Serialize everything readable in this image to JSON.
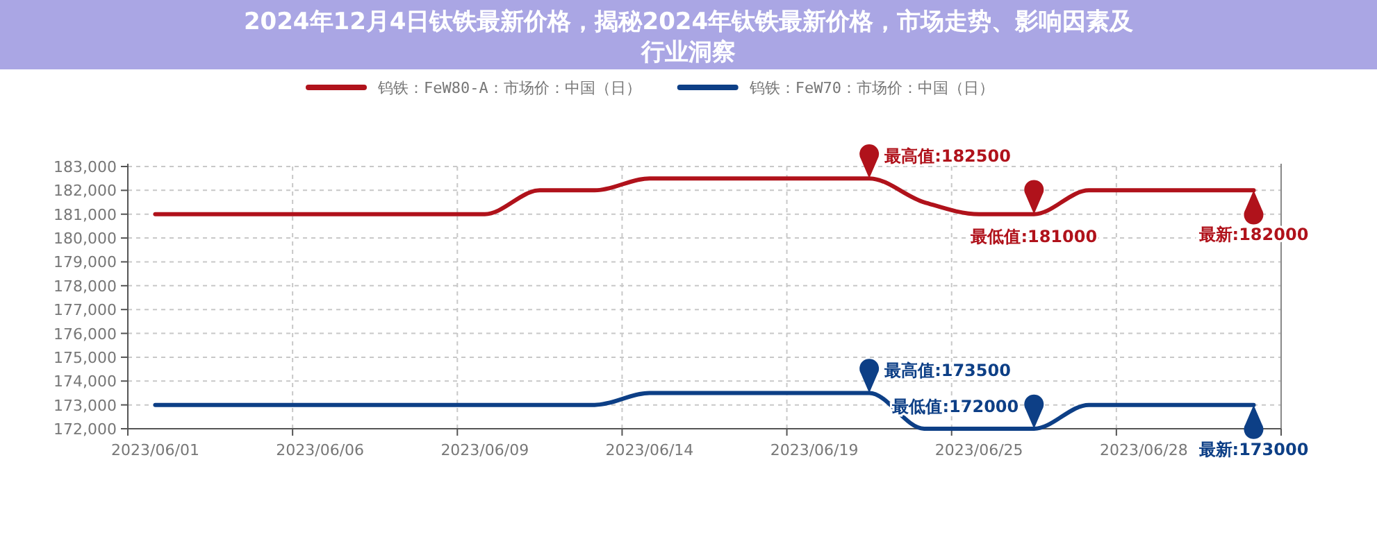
{
  "chart_data": {
    "type": "line",
    "title": "2024年12月4日钛铁最新价格，揭秘2024年钛铁最新价格，市场走势、影响因素及行业洞察",
    "categories": [
      "2023/06/01",
      null,
      null,
      "2023/06/06",
      null,
      null,
      "2023/06/09",
      null,
      null,
      "2023/06/14",
      null,
      null,
      "2023/06/19",
      null,
      null,
      "2023/06/25",
      null,
      null,
      "2023/06/28",
      null,
      null
    ],
    "series": [
      {
        "name": "钨铁：FeW80-A：市场价：中国（日）",
        "color": "#b0121b",
        "values": [
          181000,
          181000,
          181000,
          181000,
          181000,
          181000,
          181000,
          182000,
          182000,
          182500,
          182500,
          182500,
          182500,
          182500,
          181500,
          181000,
          181000,
          182000,
          182000,
          182000,
          182000
        ],
        "value_labels": [
          null,
          null,
          null,
          null,
          null,
          null,
          null,
          null,
          null,
          null,
          null,
          null,
          null,
          "最高值:182500",
          null,
          null,
          "最低值:181000",
          null,
          null,
          null,
          "最新:182000"
        ]
      },
      {
        "name": "钨铁：FeW70：市场价：中国（日）",
        "color": "#0d3f86",
        "values": [
          173000,
          173000,
          173000,
          173000,
          173000,
          173000,
          173000,
          173000,
          173000,
          173500,
          173500,
          173500,
          173500,
          173500,
          172000,
          172000,
          172000,
          173000,
          173000,
          173000,
          173000
        ],
        "value_labels": [
          null,
          null,
          null,
          null,
          null,
          null,
          null,
          null,
          null,
          null,
          null,
          null,
          null,
          "最高值:173500",
          null,
          null,
          "最低值:172000",
          null,
          null,
          null,
          "最新:173000"
        ]
      }
    ],
    "ylim": [
      172000,
      183000
    ],
    "yticks": [
      {
        "value": 172000,
        "label": "172,000"
      },
      {
        "value": 173000,
        "label": "173,000"
      },
      {
        "value": 174000,
        "label": "174,000"
      },
      {
        "value": 175000,
        "label": "175,000"
      },
      {
        "value": 176000,
        "label": "176,000"
      },
      {
        "value": 177000,
        "label": "177,000"
      },
      {
        "value": 178000,
        "label": "178,000"
      },
      {
        "value": 179000,
        "label": "179,000"
      },
      {
        "value": 180000,
        "label": "180,000"
      },
      {
        "value": 181000,
        "label": "181,000"
      },
      {
        "value": 182000,
        "label": "182,000"
      },
      {
        "value": 183000,
        "label": "183,000"
      }
    ],
    "grid": true,
    "legend": "top",
    "marker": "none",
    "line_style": "solid"
  }
}
